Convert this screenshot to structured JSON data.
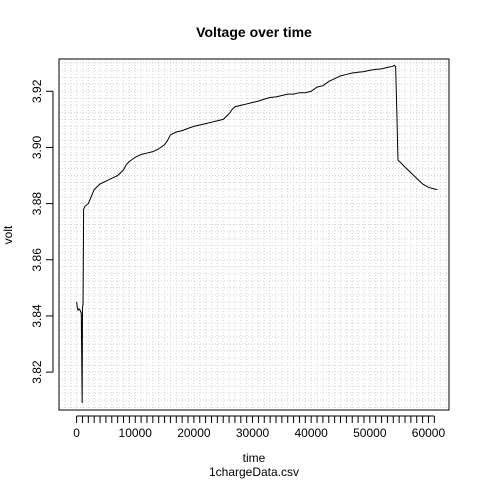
{
  "chart_data": {
    "type": "line",
    "title": "Voltage over time",
    "xlabel": "time",
    "ylabel": "volt",
    "subtitle": "1chargeData.csv",
    "xlim": [
      -3000,
      63500
    ],
    "ylim": [
      3.8065,
      3.9315
    ],
    "x_ticks": [
      0,
      10000,
      20000,
      30000,
      40000,
      50000,
      60000
    ],
    "x_minor_step": 1000,
    "y_ticks": [
      3.82,
      3.84,
      3.86,
      3.88,
      3.9,
      3.92
    ],
    "y_tick_labels": [
      "3.82",
      "3.84",
      "3.86",
      "3.88",
      "3.90",
      "3.92"
    ],
    "grid": "dotted",
    "line_color": "#000000",
    "grid_color": "#d3d3d3",
    "series": [
      {
        "x": [
          0,
          120,
          250,
          400,
          600,
          800,
          950,
          1000,
          1100,
          1200,
          1300,
          1400,
          2000,
          2600,
          3000,
          3500,
          4000,
          5000,
          6000,
          7000,
          7500,
          8000,
          8500,
          9000,
          10000,
          11000,
          12000,
          13000,
          14000,
          15000,
          15500,
          16000,
          17000,
          18000,
          19000,
          20000,
          21000,
          22000,
          23000,
          24000,
          25000,
          26000,
          26500,
          27000,
          28000,
          29000,
          30000,
          31000,
          32000,
          33000,
          34000,
          35000,
          36000,
          37000,
          38000,
          39000,
          40000,
          41000,
          42000,
          43000,
          44000,
          45000,
          46000,
          47000,
          48000,
          49000,
          50000,
          51000,
          52000,
          53000,
          53800,
          54200,
          54400,
          54600,
          54800,
          55300,
          56000,
          57000,
          58000,
          59000,
          60000,
          61000,
          61500
        ],
        "y": [
          3.845,
          3.843,
          3.842,
          3.8425,
          3.842,
          3.841,
          3.809,
          3.843,
          3.844,
          3.878,
          3.8785,
          3.879,
          3.88,
          3.883,
          3.885,
          3.886,
          3.887,
          3.888,
          3.889,
          3.89,
          3.891,
          3.892,
          3.894,
          3.895,
          3.8965,
          3.8975,
          3.898,
          3.8985,
          3.8995,
          3.901,
          3.9025,
          3.9045,
          3.9055,
          3.906,
          3.9068,
          3.9075,
          3.908,
          3.9085,
          3.909,
          3.9095,
          3.91,
          3.912,
          3.9135,
          3.9145,
          3.915,
          3.9155,
          3.916,
          3.9165,
          3.9172,
          3.9178,
          3.918,
          3.9185,
          3.919,
          3.919,
          3.9195,
          3.9195,
          3.92,
          3.9215,
          3.922,
          3.9235,
          3.9245,
          3.9255,
          3.926,
          3.9265,
          3.9268,
          3.927,
          3.9275,
          3.9278,
          3.928,
          3.9285,
          3.9288,
          3.9292,
          3.9288,
          3.913,
          3.8955,
          3.8945,
          3.893,
          3.891,
          3.889,
          3.887,
          3.8858,
          3.8852,
          3.885
        ]
      }
    ]
  }
}
